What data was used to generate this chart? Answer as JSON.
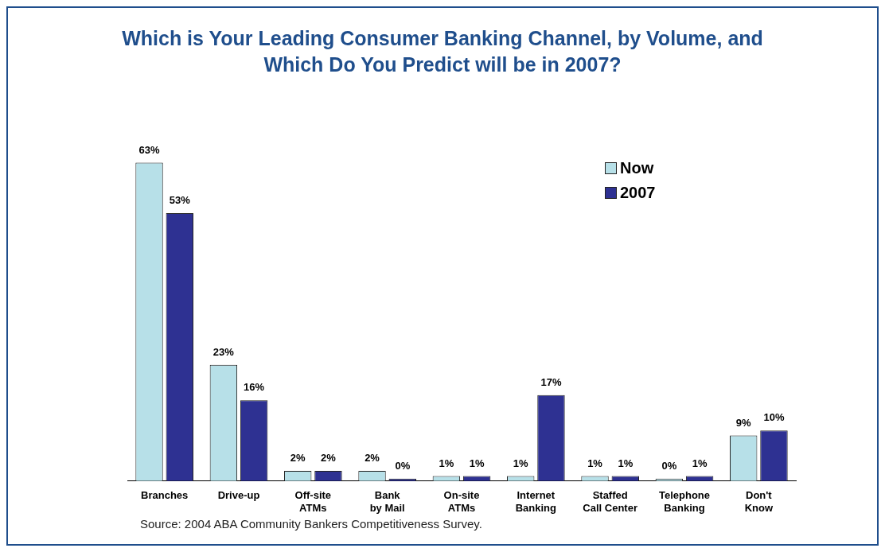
{
  "chart_data": {
    "type": "bar",
    "title": "Which is Your Leading Consumer Banking Channel, by Volume, and Which Do You Predict will be in 2007?",
    "categories": [
      "Branches",
      "Drive-up",
      "Off-site ATMs",
      "Bank by Mail",
      "On-site ATMs",
      "Internet Banking",
      "Staffed Call Center",
      "Telephone Banking",
      "Don't Know"
    ],
    "series": [
      {
        "name": "Now",
        "color": "#b7e0e8",
        "values": [
          63,
          23,
          2,
          2,
          1,
          1,
          1,
          0,
          9
        ],
        "value_labels": [
          "63%",
          "23%",
          "2%",
          "2%",
          "1%",
          "1%",
          "1%",
          "0%",
          "9%"
        ]
      },
      {
        "name": "2007",
        "color": "#2e3192",
        "values": [
          53,
          16,
          2,
          0,
          1,
          17,
          1,
          1,
          10
        ],
        "value_labels": [
          "53%",
          "16%",
          "2%",
          "0%",
          "1%",
          "17%",
          "1%",
          "1%",
          "10%"
        ]
      }
    ],
    "legend": "top right",
    "grid": false,
    "annotations": [
      "Source: 2004 ABA Community Bankers Competitiveness Survey."
    ]
  }
}
